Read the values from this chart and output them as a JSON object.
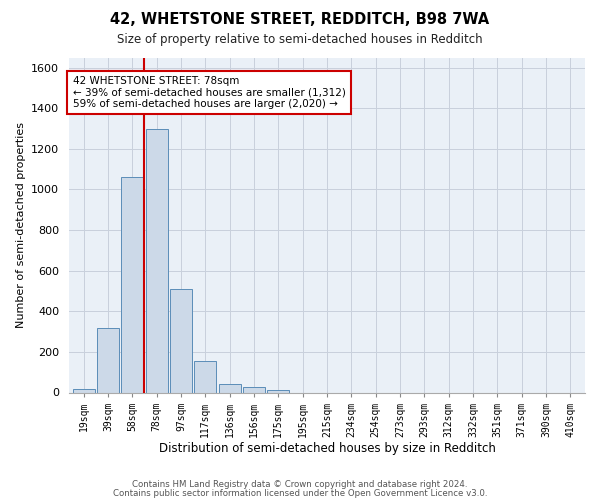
{
  "title": "42, WHETSTONE STREET, REDDITCH, B98 7WA",
  "subtitle": "Size of property relative to semi-detached houses in Redditch",
  "xlabel": "Distribution of semi-detached houses by size in Redditch",
  "ylabel": "Number of semi-detached properties",
  "footnote1": "Contains HM Land Registry data © Crown copyright and database right 2024.",
  "footnote2": "Contains public sector information licensed under the Open Government Licence v3.0.",
  "bar_color": "#ccd9e8",
  "bar_edge_color": "#5b8db8",
  "grid_color": "#c8d0dc",
  "background_color": "#eaf0f7",
  "categories": [
    "19sqm",
    "39sqm",
    "58sqm",
    "78sqm",
    "97sqm",
    "117sqm",
    "136sqm",
    "156sqm",
    "175sqm",
    "195sqm",
    "215sqm",
    "234sqm",
    "254sqm",
    "273sqm",
    "293sqm",
    "312sqm",
    "332sqm",
    "351sqm",
    "371sqm",
    "390sqm",
    "410sqm"
  ],
  "values": [
    15,
    320,
    1060,
    1300,
    510,
    155,
    40,
    25,
    12,
    0,
    0,
    0,
    0,
    0,
    0,
    0,
    0,
    0,
    0,
    0,
    0
  ],
  "red_line_x": 2.5,
  "red_line_color": "#cc0000",
  "annotation_text": "42 WHETSTONE STREET: 78sqm\n← 39% of semi-detached houses are smaller (1,312)\n59% of semi-detached houses are larger (2,020) →",
  "annotation_box_color": "#ffffff",
  "annotation_text_color": "#000000",
  "ylim": [
    0,
    1650
  ],
  "yticks": [
    0,
    200,
    400,
    600,
    800,
    1000,
    1200,
    1400,
    1600
  ]
}
